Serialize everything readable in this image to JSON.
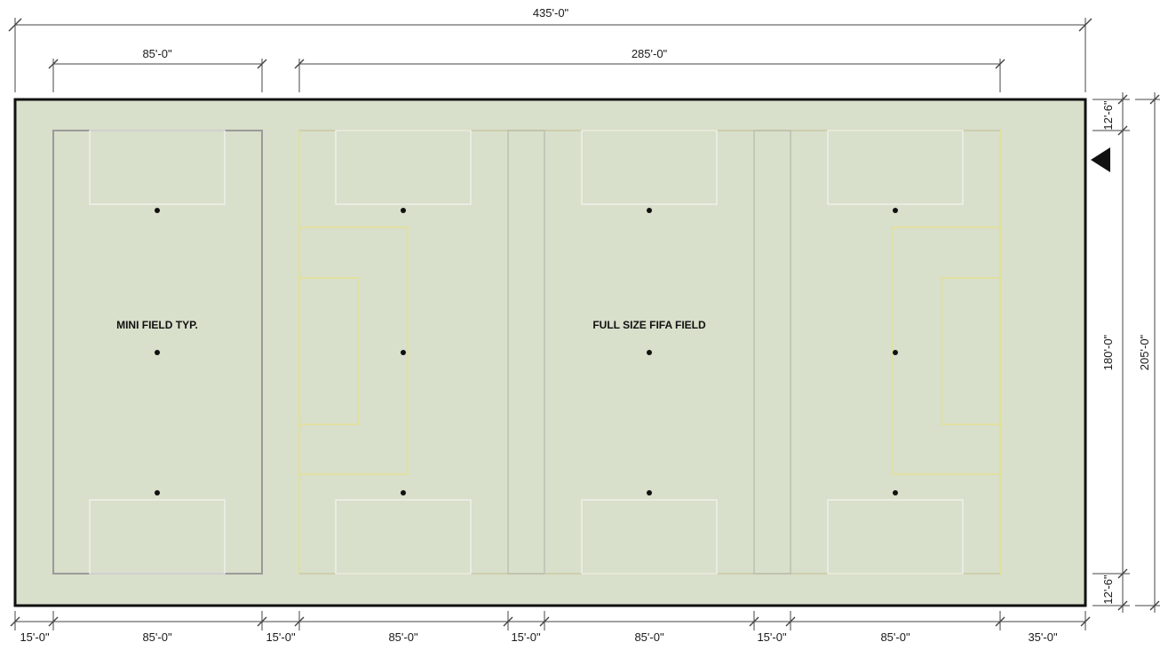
{
  "labels": {
    "mini_field": "MINI FIELD TYP.",
    "full_field": "FULL SIZE FIFA FIELD"
  },
  "dimensions": {
    "overall_width": "435'-0\"",
    "mini_width_top": "85'-0\"",
    "full_width_top": "285'-0\"",
    "bottom": [
      "15'-0\"",
      "85'-0\"",
      "15'-0\"",
      "85'-0\"",
      "15'-0\"",
      "85'-0\"",
      "15'-0\"",
      "85'-0\"",
      "35'-0\""
    ],
    "right_top_margin": "12'-6\"",
    "right_field_length": "180'-0\"",
    "right_bottom_margin": "12'-6\"",
    "overall_depth": "205'-0\""
  },
  "colors": {
    "turf": "#d8dfca",
    "boundary": "#111111",
    "mini_outline": "#9a9a9a",
    "fifa_outline": "#e6e08a",
    "white_lines": "#f4f4f4",
    "dimension_line": "#444444"
  }
}
